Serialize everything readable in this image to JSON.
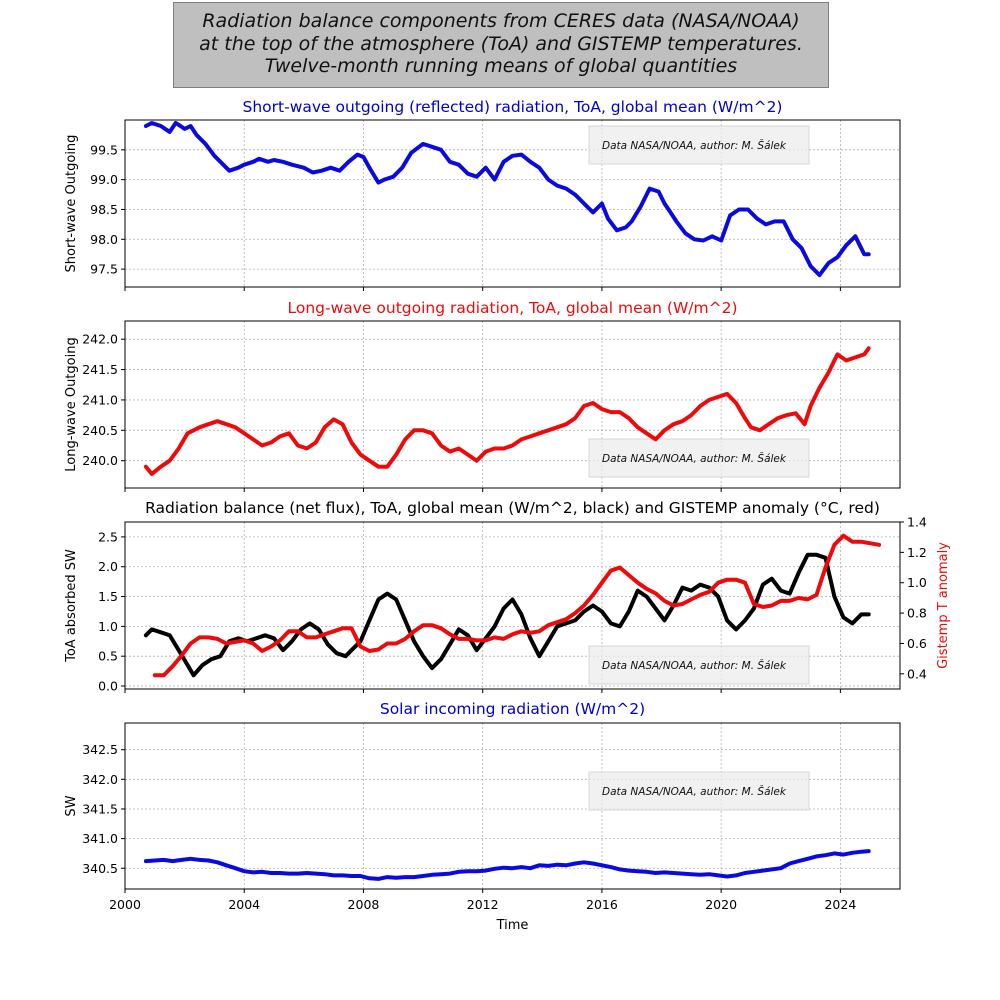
{
  "figure": {
    "title_lines": [
      "Radiation balance components from CERES data (NASA/NOAA)",
      "at the top of the atmosphere (ToA) and GISTEMP temperatures.",
      "Twelve-month running means of global quantities"
    ],
    "credit": "Data NASA/NOAA, author: M. Šálek",
    "xlabel": "Time",
    "x_ticks": [
      "2000",
      "2004",
      "2008",
      "2012",
      "2016",
      "2020",
      "2024"
    ],
    "colors": {
      "blue": "#0a0ae0",
      "red": "#ee0a0a",
      "black": "#000000",
      "title_blue": "#0000cc"
    }
  },
  "chart_data": [
    {
      "type": "line",
      "title": "Short-wave outgoing (reflected) radiation, ToA, global mean (W/m^2)",
      "ylabel": "Short-wave Outgoing",
      "xlim": [
        2000,
        2026
      ],
      "ylim": [
        97.2,
        100.0
      ],
      "y_ticks": [
        97.5,
        98.0,
        98.5,
        99.0,
        99.5
      ],
      "y_tick_labels": [
        "97.5",
        "98.0",
        "98.5",
        "99.0",
        "99.5"
      ],
      "series": [
        {
          "name": "Short-wave outgoing",
          "color": "#0a0ae0",
          "x": [
            2000.7,
            2000.9,
            2001.2,
            2001.5,
            2001.7,
            2001.8,
            2002.0,
            2002.2,
            2002.4,
            2002.7,
            2003.0,
            2003.2,
            2003.5,
            2003.8,
            2004.0,
            2004.3,
            2004.5,
            2004.8,
            2005.0,
            2005.3,
            2005.6,
            2006.0,
            2006.3,
            2006.6,
            2006.9,
            2007.2,
            2007.5,
            2007.8,
            2008.0,
            2008.2,
            2008.5,
            2008.7,
            2009.0,
            2009.3,
            2009.6,
            2010.0,
            2010.3,
            2010.6,
            2010.9,
            2011.2,
            2011.5,
            2011.8,
            2012.1,
            2012.4,
            2012.7,
            2013.0,
            2013.3,
            2013.6,
            2013.9,
            2014.2,
            2014.5,
            2014.8,
            2015.1,
            2015.4,
            2015.7,
            2016.0,
            2016.2,
            2016.5,
            2016.8,
            2017.0,
            2017.3,
            2017.6,
            2017.9,
            2018.1,
            2018.3,
            2018.5,
            2018.8,
            2019.1,
            2019.4,
            2019.7,
            2020.0,
            2020.3,
            2020.6,
            2020.9,
            2021.2,
            2021.5,
            2021.8,
            2022.1,
            2022.4,
            2022.7,
            2023.0,
            2023.3,
            2023.6,
            2023.9,
            2024.2,
            2024.5,
            2024.8,
            2024.95
          ],
          "y": [
            99.9,
            99.95,
            99.9,
            99.8,
            99.95,
            99.92,
            99.85,
            99.9,
            99.75,
            99.6,
            99.4,
            99.3,
            99.15,
            99.2,
            99.25,
            99.3,
            99.35,
            99.3,
            99.33,
            99.3,
            99.25,
            99.2,
            99.12,
            99.15,
            99.2,
            99.15,
            99.3,
            99.42,
            99.38,
            99.2,
            98.95,
            99.0,
            99.05,
            99.2,
            99.45,
            99.6,
            99.55,
            99.5,
            99.3,
            99.25,
            99.1,
            99.05,
            99.2,
            99.0,
            99.3,
            99.4,
            99.42,
            99.3,
            99.2,
            99.0,
            98.9,
            98.85,
            98.75,
            98.6,
            98.45,
            98.6,
            98.35,
            98.15,
            98.2,
            98.3,
            98.55,
            98.85,
            98.8,
            98.6,
            98.45,
            98.3,
            98.1,
            98.0,
            97.98,
            98.05,
            97.98,
            98.4,
            98.5,
            98.5,
            98.35,
            98.25,
            98.3,
            98.3,
            98.0,
            97.85,
            97.55,
            97.4,
            97.6,
            97.7,
            97.9,
            98.05,
            97.75,
            97.75
          ]
        }
      ]
    },
    {
      "type": "line",
      "title": "Long-wave outgoing radiation, ToA, global mean  (W/m^2)",
      "ylabel": "Long-wave Outgoing",
      "xlim": [
        2000,
        2026
      ],
      "ylim": [
        239.55,
        242.3
      ],
      "y_ticks": [
        240.0,
        240.5,
        241.0,
        241.5,
        242.0
      ],
      "y_tick_labels": [
        "240.0",
        "240.5",
        "241.0",
        "241.5",
        "242.0"
      ],
      "series": [
        {
          "name": "Long-wave outgoing",
          "color": "#ee0a0a",
          "x": [
            2000.7,
            2000.9,
            2001.2,
            2001.5,
            2001.8,
            2002.1,
            2002.5,
            2002.8,
            2003.1,
            2003.4,
            2003.7,
            2004.0,
            2004.3,
            2004.6,
            2004.9,
            2005.2,
            2005.5,
            2005.8,
            2006.1,
            2006.4,
            2006.7,
            2007.0,
            2007.3,
            2007.6,
            2007.9,
            2008.2,
            2008.5,
            2008.8,
            2009.1,
            2009.4,
            2009.7,
            2010.0,
            2010.3,
            2010.6,
            2010.9,
            2011.2,
            2011.5,
            2011.8,
            2012.1,
            2012.4,
            2012.7,
            2013.0,
            2013.3,
            2013.6,
            2013.9,
            2014.2,
            2014.5,
            2014.8,
            2015.1,
            2015.4,
            2015.7,
            2016.0,
            2016.3,
            2016.6,
            2016.9,
            2017.2,
            2017.5,
            2017.8,
            2018.1,
            2018.4,
            2018.7,
            2019.0,
            2019.3,
            2019.6,
            2019.9,
            2020.2,
            2020.5,
            2020.8,
            2021.0,
            2021.3,
            2021.6,
            2021.9,
            2022.2,
            2022.5,
            2022.8,
            2023.0,
            2023.3,
            2023.6,
            2023.9,
            2024.2,
            2024.5,
            2024.8,
            2024.95
          ],
          "y": [
            239.9,
            239.78,
            239.9,
            240.0,
            240.2,
            240.45,
            240.55,
            240.6,
            240.65,
            240.6,
            240.55,
            240.45,
            240.35,
            240.25,
            240.3,
            240.4,
            240.45,
            240.25,
            240.2,
            240.3,
            240.55,
            240.68,
            240.6,
            240.3,
            240.1,
            240.0,
            239.9,
            239.9,
            240.1,
            240.35,
            240.5,
            240.5,
            240.45,
            240.25,
            240.15,
            240.2,
            240.1,
            240.0,
            240.15,
            240.2,
            240.2,
            240.25,
            240.35,
            240.4,
            240.45,
            240.5,
            240.55,
            240.6,
            240.7,
            240.9,
            240.95,
            240.85,
            240.8,
            240.8,
            240.7,
            240.55,
            240.45,
            240.35,
            240.5,
            240.6,
            240.65,
            240.75,
            240.9,
            241.0,
            241.05,
            241.1,
            240.95,
            240.7,
            240.55,
            240.5,
            240.6,
            240.7,
            240.75,
            240.78,
            240.6,
            240.9,
            241.2,
            241.45,
            241.75,
            241.65,
            241.7,
            241.75,
            241.85
          ]
        }
      ]
    },
    {
      "type": "line",
      "title": "Radiation balance (net flux), ToA, global mean (W/m^2, black) and GISTEMP anomaly (°C, red)",
      "ylabel": "ToA absorbed SW",
      "ylabel_right": "Gistemp T anomaly",
      "xlim": [
        2000,
        2026
      ],
      "ylim": [
        -0.05,
        2.75
      ],
      "y_ticks": [
        0.0,
        0.5,
        1.0,
        1.5,
        2.0,
        2.5
      ],
      "y_tick_labels": [
        "0.0",
        "0.5",
        "1.0",
        "1.5",
        "2.0",
        "2.5"
      ],
      "ylim_right": [
        0.3,
        1.4
      ],
      "y_ticks_right": [
        0.4,
        0.6,
        0.8,
        1.0,
        1.2,
        1.4
      ],
      "y_tick_labels_right": [
        "0.4",
        "0.6",
        "0.8",
        "1.0",
        "1.2",
        "1.4"
      ],
      "series": [
        {
          "name": "Net flux",
          "axis": "left",
          "color": "#000000",
          "x": [
            2000.7,
            2000.9,
            2001.2,
            2001.5,
            2001.8,
            2002.1,
            2002.3,
            2002.6,
            2002.9,
            2003.2,
            2003.5,
            2003.8,
            2004.1,
            2004.4,
            2004.7,
            2005.0,
            2005.3,
            2005.6,
            2005.9,
            2006.2,
            2006.5,
            2006.8,
            2007.1,
            2007.4,
            2007.6,
            2007.9,
            2008.2,
            2008.5,
            2008.8,
            2009.1,
            2009.4,
            2009.7,
            2010.0,
            2010.3,
            2010.6,
            2010.9,
            2011.2,
            2011.5,
            2011.8,
            2012.1,
            2012.4,
            2012.7,
            2013.0,
            2013.3,
            2013.6,
            2013.9,
            2014.2,
            2014.5,
            2014.8,
            2015.1,
            2015.4,
            2015.7,
            2016.0,
            2016.3,
            2016.6,
            2016.9,
            2017.2,
            2017.5,
            2017.8,
            2018.1,
            2018.4,
            2018.7,
            2019.0,
            2019.3,
            2019.6,
            2019.9,
            2020.2,
            2020.5,
            2020.8,
            2021.1,
            2021.4,
            2021.7,
            2022.0,
            2022.3,
            2022.6,
            2022.9,
            2023.2,
            2023.5,
            2023.8,
            2024.1,
            2024.4,
            2024.7,
            2024.95
          ],
          "y": [
            0.85,
            0.95,
            0.9,
            0.85,
            0.6,
            0.35,
            0.18,
            0.35,
            0.45,
            0.5,
            0.75,
            0.8,
            0.75,
            0.8,
            0.85,
            0.8,
            0.6,
            0.75,
            0.95,
            1.05,
            0.95,
            0.7,
            0.55,
            0.5,
            0.6,
            0.75,
            1.1,
            1.45,
            1.55,
            1.45,
            1.1,
            0.75,
            0.5,
            0.3,
            0.45,
            0.7,
            0.95,
            0.85,
            0.6,
            0.8,
            1.0,
            1.3,
            1.45,
            1.2,
            0.8,
            0.5,
            0.75,
            1.0,
            1.05,
            1.1,
            1.25,
            1.35,
            1.25,
            1.05,
            1.0,
            1.25,
            1.6,
            1.5,
            1.3,
            1.1,
            1.35,
            1.65,
            1.6,
            1.7,
            1.65,
            1.5,
            1.1,
            0.95,
            1.1,
            1.3,
            1.7,
            1.8,
            1.6,
            1.55,
            1.9,
            2.2,
            2.2,
            2.15,
            1.5,
            1.15,
            1.05,
            1.2,
            1.2
          ]
        },
        {
          "name": "GISTEMP anomaly",
          "axis": "right",
          "color": "#ee0a0a",
          "x": [
            2001.0,
            2001.3,
            2001.6,
            2001.9,
            2002.2,
            2002.5,
            2002.8,
            2003.1,
            2003.4,
            2003.7,
            2004.0,
            2004.3,
            2004.6,
            2004.9,
            2005.2,
            2005.5,
            2005.8,
            2006.1,
            2006.4,
            2006.7,
            2007.0,
            2007.3,
            2007.6,
            2007.9,
            2008.2,
            2008.5,
            2008.8,
            2009.1,
            2009.4,
            2009.7,
            2010.0,
            2010.3,
            2010.6,
            2010.9,
            2011.2,
            2011.5,
            2011.8,
            2012.1,
            2012.4,
            2012.7,
            2013.0,
            2013.3,
            2013.6,
            2013.9,
            2014.2,
            2014.5,
            2014.8,
            2015.1,
            2015.4,
            2015.7,
            2016.0,
            2016.3,
            2016.6,
            2016.9,
            2017.2,
            2017.5,
            2017.8,
            2018.1,
            2018.4,
            2018.7,
            2019.0,
            2019.3,
            2019.6,
            2019.9,
            2020.2,
            2020.5,
            2020.8,
            2021.1,
            2021.4,
            2021.7,
            2022.0,
            2022.3,
            2022.6,
            2022.9,
            2023.2,
            2023.5,
            2023.8,
            2024.1,
            2024.4,
            2024.7,
            2025.0,
            2025.3
          ],
          "y": [
            0.39,
            0.39,
            0.45,
            0.52,
            0.6,
            0.64,
            0.64,
            0.63,
            0.6,
            0.61,
            0.62,
            0.6,
            0.55,
            0.58,
            0.62,
            0.68,
            0.68,
            0.64,
            0.64,
            0.66,
            0.68,
            0.7,
            0.7,
            0.58,
            0.55,
            0.56,
            0.6,
            0.6,
            0.63,
            0.68,
            0.72,
            0.72,
            0.7,
            0.66,
            0.63,
            0.63,
            0.62,
            0.62,
            0.64,
            0.63,
            0.66,
            0.68,
            0.67,
            0.68,
            0.72,
            0.74,
            0.76,
            0.8,
            0.85,
            0.92,
            1.0,
            1.08,
            1.1,
            1.05,
            1.0,
            0.96,
            0.93,
            0.88,
            0.85,
            0.86,
            0.89,
            0.92,
            0.94,
            1.0,
            1.02,
            1.02,
            1.0,
            0.86,
            0.84,
            0.85,
            0.88,
            0.88,
            0.9,
            0.89,
            0.92,
            1.1,
            1.25,
            1.31,
            1.27,
            1.27,
            1.26,
            1.25
          ]
        }
      ]
    },
    {
      "type": "line",
      "title": "Solar incoming radiation (W/m^2)",
      "ylabel": "SW",
      "xlim": [
        2000,
        2026
      ],
      "ylim": [
        340.15,
        342.95
      ],
      "y_ticks": [
        340.5,
        341.0,
        341.5,
        342.0,
        342.5
      ],
      "y_tick_labels": [
        "340.5",
        "341.0",
        "341.5",
        "342.0",
        "342.5"
      ],
      "series": [
        {
          "name": "Solar incoming",
          "color": "#0a0ae0",
          "x": [
            2000.7,
            2001.0,
            2001.3,
            2001.6,
            2001.9,
            2002.2,
            2002.5,
            2002.8,
            2003.1,
            2003.4,
            2003.7,
            2004.0,
            2004.3,
            2004.6,
            2004.9,
            2005.2,
            2005.5,
            2005.8,
            2006.1,
            2006.4,
            2006.7,
            2007.0,
            2007.3,
            2007.6,
            2007.9,
            2008.2,
            2008.5,
            2008.8,
            2009.1,
            2009.4,
            2009.7,
            2010.0,
            2010.3,
            2010.6,
            2010.9,
            2011.2,
            2011.5,
            2011.8,
            2012.1,
            2012.4,
            2012.7,
            2013.0,
            2013.3,
            2013.6,
            2013.9,
            2014.2,
            2014.5,
            2014.8,
            2015.1,
            2015.4,
            2015.7,
            2016.0,
            2016.3,
            2016.6,
            2016.9,
            2017.2,
            2017.5,
            2017.8,
            2018.1,
            2018.4,
            2018.7,
            2019.0,
            2019.3,
            2019.6,
            2019.9,
            2020.2,
            2020.5,
            2020.8,
            2021.1,
            2021.4,
            2021.7,
            2022.0,
            2022.3,
            2022.6,
            2022.9,
            2023.2,
            2023.5,
            2023.8,
            2024.1,
            2024.4,
            2024.7,
            2024.95
          ],
          "y": [
            340.62,
            340.63,
            340.64,
            340.62,
            340.64,
            340.66,
            340.64,
            340.63,
            340.6,
            340.55,
            340.5,
            340.45,
            340.43,
            340.44,
            340.42,
            340.42,
            340.41,
            340.41,
            340.42,
            340.41,
            340.4,
            340.38,
            340.38,
            340.37,
            340.37,
            340.33,
            340.32,
            340.35,
            340.34,
            340.35,
            340.35,
            340.37,
            340.39,
            340.4,
            340.41,
            340.44,
            340.45,
            340.45,
            340.46,
            340.49,
            340.51,
            340.5,
            340.52,
            340.5,
            340.55,
            340.54,
            340.56,
            340.55,
            340.58,
            340.6,
            340.58,
            340.55,
            340.52,
            340.48,
            340.46,
            340.45,
            340.44,
            340.42,
            340.43,
            340.42,
            340.41,
            340.4,
            340.39,
            340.4,
            340.38,
            340.36,
            340.38,
            340.42,
            340.44,
            340.46,
            340.48,
            340.5,
            340.58,
            340.62,
            340.66,
            340.7,
            340.72,
            340.75,
            340.73,
            340.76,
            340.78,
            340.79
          ]
        }
      ]
    }
  ]
}
